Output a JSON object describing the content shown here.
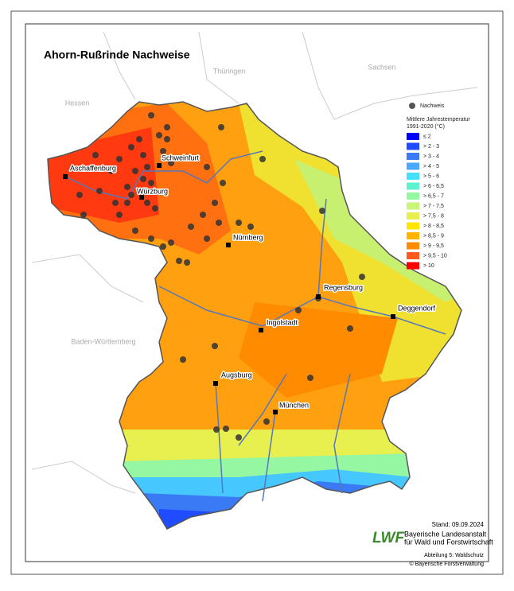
{
  "header": {
    "title": "Ahorn-Rußrinde Nachweise"
  },
  "neighbors": [
    "Thüringen",
    "Sachsen",
    "Hessen",
    "Baden-Württemberg"
  ],
  "cities": [
    "Aschaffenburg",
    "Schweinfurt",
    "Würzburg",
    "Nürnberg",
    "Regensburg",
    "Ingolstadt",
    "Deggendorf",
    "Augsburg",
    "München"
  ],
  "legend": {
    "points_label": "Nachweis",
    "title_lines": [
      "Mittlere Jahrestemperatur",
      "1991-2020 (°C)"
    ],
    "classes": [
      {
        "label": "≤ 2",
        "color": "#0000ff"
      },
      {
        "label": "> 2 - 3",
        "color": "#1f4cff"
      },
      {
        "label": "> 3 - 4",
        "color": "#3a7af5"
      },
      {
        "label": "> 4 - 5",
        "color": "#4aa8ff"
      },
      {
        "label": "> 5 - 6",
        "color": "#46e0ff"
      },
      {
        "label": "> 6 - 6,5",
        "color": "#5ff2d2"
      },
      {
        "label": "> 6,5 - 7",
        "color": "#95f7a2"
      },
      {
        "label": "> 7 - 7,5",
        "color": "#c8f57a"
      },
      {
        "label": "> 7,5 - 8",
        "color": "#e8f050"
      },
      {
        "label": "> 8 - 8,5",
        "color": "#ffe600"
      },
      {
        "label": "> 8,5 - 9",
        "color": "#ffb400"
      },
      {
        "label": "> 9 - 9,5",
        "color": "#ff8c00"
      },
      {
        "label": "> 9,5 - 10",
        "color": "#ff5a1e"
      },
      {
        "label": "> 10",
        "color": "#ff0000"
      }
    ]
  },
  "footer": {
    "date": "Stand: 09.09.2024",
    "logo": "LWF",
    "institution_lines": [
      "Bayerische Landesanstalt",
      "für Wald und Forstwirtschaft"
    ],
    "department": "Abteilung 5: Waldschutz",
    "copyright": "© Bayerische Forstverwaltung"
  }
}
